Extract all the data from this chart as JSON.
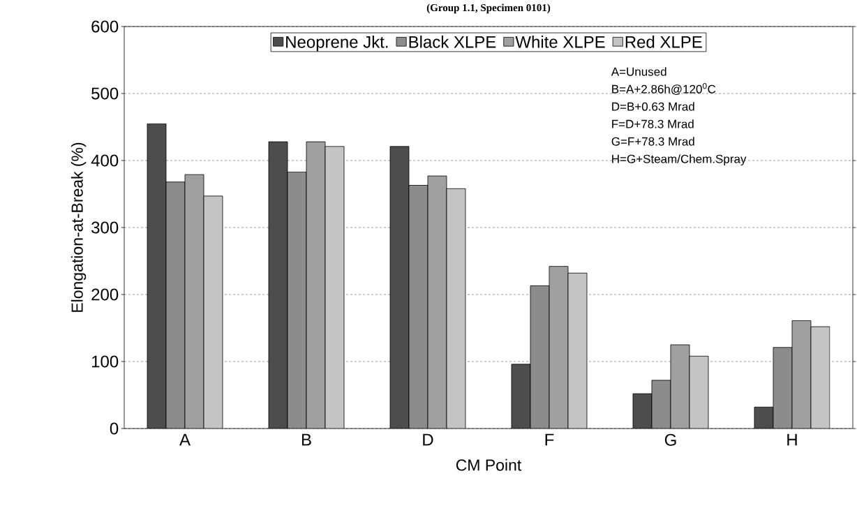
{
  "chart_data": {
    "type": "bar",
    "title": "(Group 1.1, Specimen 0101)",
    "xlabel": "CM Point",
    "ylabel": "Elongation-at-Break (%)",
    "categories": [
      "A",
      "B",
      "D",
      "F",
      "G",
      "H"
    ],
    "series": [
      {
        "name": "Neoprene Jkt.",
        "color": "#4d4d4d",
        "values": [
          455,
          428,
          421,
          96,
          52,
          32
        ]
      },
      {
        "name": "Black XLPE",
        "color": "#8c8c8c",
        "values": [
          368,
          383,
          363,
          213,
          72,
          121
        ]
      },
      {
        "name": "White XLPE",
        "color": "#a0a0a0",
        "values": [
          379,
          428,
          377,
          242,
          125,
          161
        ]
      },
      {
        "name": "Red XLPE",
        "color": "#c4c4c4",
        "values": [
          347,
          421,
          358,
          232,
          108,
          152
        ]
      }
    ],
    "ylim": [
      0,
      600
    ],
    "yticks": [
      0,
      100,
      200,
      300,
      400,
      500,
      600
    ],
    "grid": "y",
    "legend": "top",
    "annotations": [
      "A=Unused",
      "B=A+2.86h@120$^{0}$C",
      "D=B+0.63 Mrad",
      "F=D+78.3 Mrad",
      "G=F+78.3 Mrad",
      "H=G+Steam/Chem.Spray"
    ]
  }
}
